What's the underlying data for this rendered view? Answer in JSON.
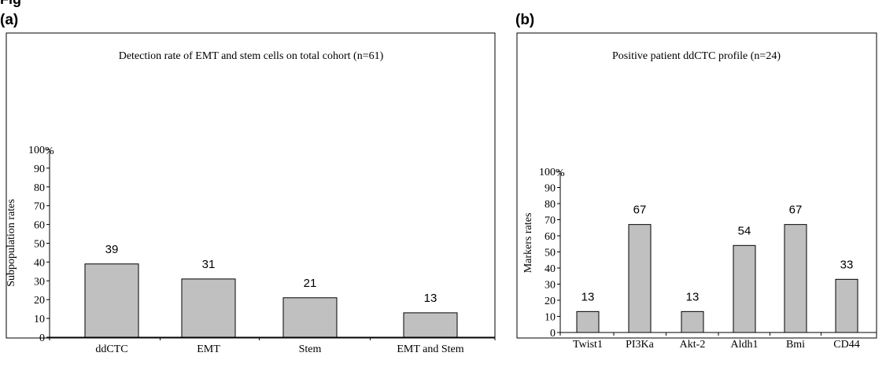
{
  "top_fragment": "Fig",
  "panels": [
    "(a)",
    "(b)"
  ],
  "chart_data": [
    {
      "type": "bar",
      "title": "Detection rate of EMT and stem cells on total cohort (n=61)",
      "xlabel": "",
      "ylabel": "Subpopulation rates",
      "ylim": [
        0,
        100
      ],
      "yticks": [
        "0",
        "10",
        "20",
        "30",
        "40",
        "50",
        "60",
        "70",
        "80",
        "90",
        "100"
      ],
      "percent_mark": "%",
      "categories": [
        "ddCTC",
        "EMT",
        "Stem",
        "EMT and Stem"
      ],
      "values": [
        39,
        31,
        21,
        13
      ],
      "data_labels": [
        "39",
        "31",
        "21",
        "13"
      ],
      "grid": false,
      "bar_color": "#c0c0c0"
    },
    {
      "type": "bar",
      "title": "Positive patient ddCTC profile (n=24)",
      "xlabel": "",
      "ylabel": "Markers rates",
      "ylim": [
        0,
        100
      ],
      "yticks": [
        "0",
        "10",
        "20",
        "30",
        "40",
        "50",
        "60",
        "70",
        "80",
        "90",
        "100"
      ],
      "percent_mark": "%",
      "categories": [
        "Twist1",
        "PI3Ka",
        "Akt-2",
        "Aldh1",
        "Bmi",
        "CD44"
      ],
      "values": [
        13,
        67,
        13,
        54,
        67,
        33
      ],
      "data_labels": [
        "13",
        "67",
        "13",
        "54",
        "67",
        "33"
      ],
      "grid": false,
      "bar_color": "#c0c0c0"
    }
  ]
}
